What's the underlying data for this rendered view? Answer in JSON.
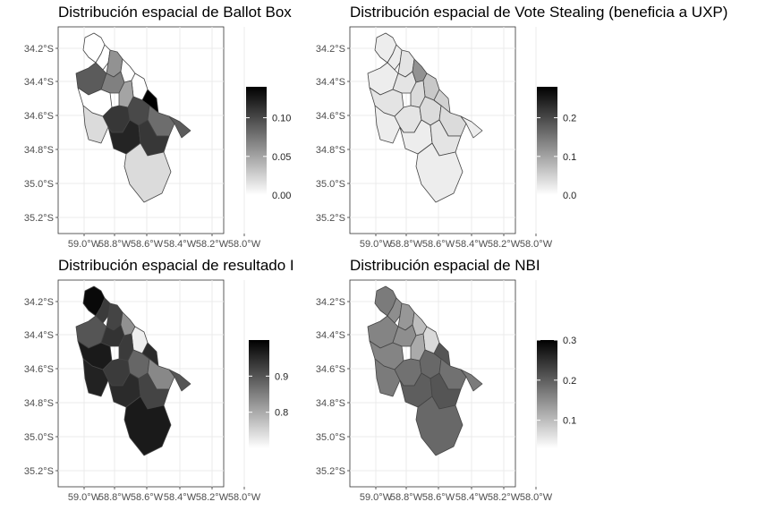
{
  "chart_data": [
    {
      "type": "heatmap",
      "title": "Distribución espacial de Ballot Box",
      "y_ticks": [
        "34.2°S",
        "34.4°S",
        "34.6°S",
        "34.8°S",
        "35.0°S",
        "35.2°S"
      ],
      "x_ticks": [
        "59.0°W",
        "58.8°W",
        "58.6°W",
        "58.4°W",
        "58.2°W",
        "58.0°W"
      ],
      "legend": {
        "ticks": [
          "0.10",
          "0.05",
          "0.00"
        ],
        "tick_values": [
          0.1,
          0.05,
          0.0
        ],
        "min": 0.0,
        "max": 0.14
      },
      "regions": [
        {
          "id": "north-tip",
          "value": 0.0
        },
        {
          "id": "northwest-a",
          "value": 0.0
        },
        {
          "id": "north-center",
          "value": 0.06
        },
        {
          "id": "west-upper",
          "value": 0.09
        },
        {
          "id": "west-mid",
          "value": 0.07
        },
        {
          "id": "center-north",
          "value": 0.0
        },
        {
          "id": "center-east",
          "value": 0.0
        },
        {
          "id": "center-mid",
          "value": 0.05
        },
        {
          "id": "west-lower",
          "value": 0.0
        },
        {
          "id": "southwest",
          "value": 0.02
        },
        {
          "id": "center-south",
          "value": 0.11
        },
        {
          "id": "south-east",
          "value": 0.1
        },
        {
          "id": "core-dark",
          "value": 0.14
        },
        {
          "id": "east-mid",
          "value": 0.08
        },
        {
          "id": "east-tip",
          "value": 0.09
        },
        {
          "id": "south-west-2",
          "value": 0.12
        },
        {
          "id": "south-core",
          "value": 0.11
        },
        {
          "id": "south-large",
          "value": 0.02
        }
      ]
    },
    {
      "type": "heatmap",
      "title": "Distribución espacial de Vote Stealing (beneficia a UXP)",
      "y_ticks": [
        "34.2°S",
        "34.4°S",
        "34.6°S",
        "34.8°S",
        "35.0°S",
        "35.2°S"
      ],
      "x_ticks": [
        "59.0°W",
        "58.8°W",
        "58.6°W",
        "58.4°W",
        "58.2°W",
        "58.0°W"
      ],
      "legend": {
        "ticks": [
          "0.2",
          "0.1",
          "0.0"
        ],
        "tick_values": [
          0.2,
          0.1,
          0.0
        ],
        "min": 0.0,
        "max": 0.28
      },
      "regions": [
        {
          "id": "north-tip",
          "value": 0.02
        },
        {
          "id": "northwest-a",
          "value": 0.02
        },
        {
          "id": "north-center",
          "value": 0.03
        },
        {
          "id": "west-upper",
          "value": 0.02
        },
        {
          "id": "west-mid",
          "value": 0.03
        },
        {
          "id": "center-north",
          "value": 0.12
        },
        {
          "id": "center-east",
          "value": 0.06
        },
        {
          "id": "center-mid",
          "value": 0.04
        },
        {
          "id": "west-lower",
          "value": 0.03
        },
        {
          "id": "southwest",
          "value": 0.02
        },
        {
          "id": "center-south",
          "value": 0.03
        },
        {
          "id": "south-east",
          "value": 0.04
        },
        {
          "id": "core-dark",
          "value": 0.05
        },
        {
          "id": "east-mid",
          "value": 0.04
        },
        {
          "id": "east-tip",
          "value": 0.02
        },
        {
          "id": "south-west-2",
          "value": 0.02
        },
        {
          "id": "south-core",
          "value": 0.03
        },
        {
          "id": "south-large",
          "value": 0.02
        }
      ]
    },
    {
      "type": "heatmap",
      "title": "Distribución espacial de resultado I",
      "y_ticks": [
        "34.2°S",
        "34.4°S",
        "34.6°S",
        "34.8°S",
        "35.0°S",
        "35.2°S"
      ],
      "x_ticks": [
        "59.0°W",
        "58.8°W",
        "58.6°W",
        "58.4°W",
        "58.2°W",
        "58.0°W"
      ],
      "legend": {
        "ticks": [
          "0.9",
          "0.8"
        ],
        "tick_values": [
          0.9,
          0.8
        ],
        "min": 0.7,
        "max": 1.0
      },
      "regions": [
        {
          "id": "north-tip",
          "value": 0.99
        },
        {
          "id": "northwest-a",
          "value": 0.93
        },
        {
          "id": "north-center",
          "value": 0.92
        },
        {
          "id": "west-upper",
          "value": 0.9
        },
        {
          "id": "west-mid",
          "value": 0.94
        },
        {
          "id": "center-north",
          "value": 0.83
        },
        {
          "id": "center-east",
          "value": 0.72
        },
        {
          "id": "center-mid",
          "value": 0.93
        },
        {
          "id": "west-lower",
          "value": 0.97
        },
        {
          "id": "southwest",
          "value": 0.96
        },
        {
          "id": "center-south",
          "value": 0.93
        },
        {
          "id": "south-east",
          "value": 0.88
        },
        {
          "id": "core-dark",
          "value": 0.95
        },
        {
          "id": "east-mid",
          "value": 0.84
        },
        {
          "id": "east-tip",
          "value": 0.9
        },
        {
          "id": "south-west-2",
          "value": 0.95
        },
        {
          "id": "south-core",
          "value": 0.92
        },
        {
          "id": "south-large",
          "value": 0.97
        }
      ]
    },
    {
      "type": "heatmap",
      "title": "Distribución espacial de NBI",
      "y_ticks": [
        "34.2°S",
        "34.4°S",
        "34.6°S",
        "34.8°S",
        "35.0°S",
        "35.2°S"
      ],
      "x_ticks": [
        "59.0°W",
        "58.8°W",
        "58.6°W",
        "58.4°W",
        "58.2°W",
        "58.0°W"
      ],
      "legend": {
        "ticks": [
          "0.3",
          "0.2",
          "0.1"
        ],
        "tick_values": [
          0.3,
          0.2,
          0.1
        ],
        "min": 0.03,
        "max": 0.3
      },
      "regions": [
        {
          "id": "north-tip",
          "value": 0.17
        },
        {
          "id": "northwest-a",
          "value": 0.15
        },
        {
          "id": "north-center",
          "value": 0.14
        },
        {
          "id": "west-upper",
          "value": 0.16
        },
        {
          "id": "west-mid",
          "value": 0.15
        },
        {
          "id": "center-north",
          "value": 0.1
        },
        {
          "id": "center-east",
          "value": 0.07
        },
        {
          "id": "center-mid",
          "value": 0.12
        },
        {
          "id": "west-lower",
          "value": 0.16
        },
        {
          "id": "southwest",
          "value": 0.17
        },
        {
          "id": "center-south",
          "value": 0.18
        },
        {
          "id": "south-east",
          "value": 0.19
        },
        {
          "id": "core-dark",
          "value": 0.21
        },
        {
          "id": "east-mid",
          "value": 0.18
        },
        {
          "id": "east-tip",
          "value": 0.17
        },
        {
          "id": "south-west-2",
          "value": 0.2
        },
        {
          "id": "south-core",
          "value": 0.21
        },
        {
          "id": "south-large",
          "value": 0.19
        }
      ]
    }
  ]
}
